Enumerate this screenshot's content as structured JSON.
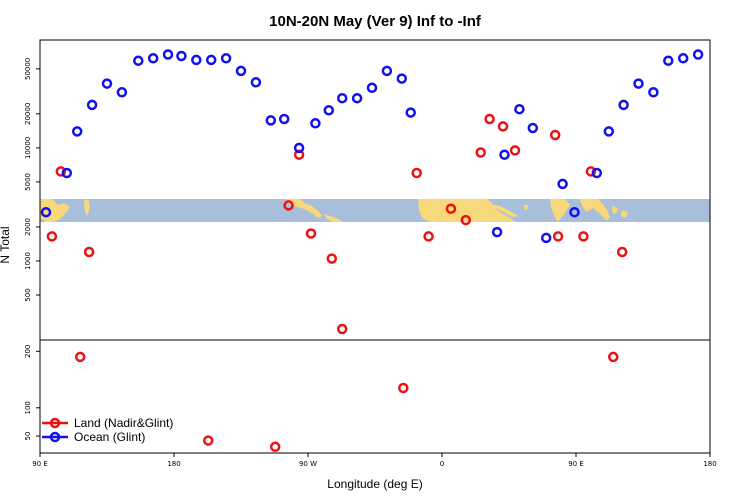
{
  "chart_data": {
    "type": "scatter",
    "title": "10N-20N May (Ver 9)   Inf to -Inf",
    "xlabel": "Longitude (deg E)",
    "ylabel": "N Total",
    "x_ticks": [
      {
        "value": 90,
        "label": "90 E"
      },
      {
        "value": 180,
        "label": "180"
      },
      {
        "value": 270,
        "label": "90 W"
      },
      {
        "value": 360,
        "label": "0"
      },
      {
        "value": 450,
        "label": "90 E"
      },
      {
        "value": 540,
        "label": "180"
      }
    ],
    "xlim": [
      90,
      540
    ],
    "upper_panel": {
      "scale": "log",
      "ylim": [
        200,
        90000
      ],
      "y_ticks": [
        500,
        1000,
        2000,
        5000,
        10000,
        20000,
        50000
      ],
      "y_tick_labels": [
        "500",
        "1000",
        "2000",
        "5000",
        "10000",
        "20000",
        "50000"
      ]
    },
    "lower_panel": {
      "scale": "linear",
      "ylim": [
        20,
        220
      ],
      "y_ticks": [
        50,
        100,
        200
      ],
      "y_tick_labels": [
        "50",
        "100",
        "200"
      ]
    },
    "map_strip": {
      "description_colors": {
        "ocean": "#a8bfdc",
        "land": "#f7d87a"
      }
    },
    "series": [
      {
        "name": "Land (Nadir&Glint)",
        "color": "#ee1111",
        "points": [
          {
            "x": 98,
            "y": 1650
          },
          {
            "x": 104,
            "y": 6200
          },
          {
            "x": 117,
            "y": 190
          },
          {
            "x": 123,
            "y": 1200
          },
          {
            "x": 203,
            "y": 42
          },
          {
            "x": 248,
            "y": 31
          },
          {
            "x": 257,
            "y": 3100
          },
          {
            "x": 264,
            "y": 8700
          },
          {
            "x": 272,
            "y": 1750
          },
          {
            "x": 286,
            "y": 1050
          },
          {
            "x": 293,
            "y": 250
          },
          {
            "x": 334,
            "y": 135
          },
          {
            "x": 343,
            "y": 6000
          },
          {
            "x": 351,
            "y": 1650
          },
          {
            "x": 366,
            "y": 2900
          },
          {
            "x": 376,
            "y": 2300
          },
          {
            "x": 386,
            "y": 9100
          },
          {
            "x": 392,
            "y": 18000
          },
          {
            "x": 401,
            "y": 15500
          },
          {
            "x": 409,
            "y": 9500
          },
          {
            "x": 436,
            "y": 13000
          },
          {
            "x": 438,
            "y": 1650
          },
          {
            "x": 455,
            "y": 1650
          },
          {
            "x": 460,
            "y": 6200
          },
          {
            "x": 475,
            "y": 190
          },
          {
            "x": 481,
            "y": 1200
          }
        ]
      },
      {
        "name": "Ocean (Glint)",
        "color": "#1111ee",
        "points": [
          {
            "x": 94,
            "y": 2700
          },
          {
            "x": 108,
            "y": 6000
          },
          {
            "x": 115,
            "y": 14000
          },
          {
            "x": 125,
            "y": 24000
          },
          {
            "x": 135,
            "y": 37000
          },
          {
            "x": 145,
            "y": 31000
          },
          {
            "x": 156,
            "y": 59000
          },
          {
            "x": 166,
            "y": 62000
          },
          {
            "x": 176,
            "y": 67000
          },
          {
            "x": 185,
            "y": 65000
          },
          {
            "x": 195,
            "y": 60000
          },
          {
            "x": 205,
            "y": 60000
          },
          {
            "x": 215,
            "y": 62000
          },
          {
            "x": 225,
            "y": 48000
          },
          {
            "x": 235,
            "y": 38000
          },
          {
            "x": 245,
            "y": 17500
          },
          {
            "x": 254,
            "y": 18000
          },
          {
            "x": 264,
            "y": 10000
          },
          {
            "x": 275,
            "y": 16500
          },
          {
            "x": 284,
            "y": 21500
          },
          {
            "x": 293,
            "y": 27500
          },
          {
            "x": 303,
            "y": 27500
          },
          {
            "x": 313,
            "y": 34000
          },
          {
            "x": 323,
            "y": 48000
          },
          {
            "x": 333,
            "y": 41000
          },
          {
            "x": 339,
            "y": 20500
          },
          {
            "x": 397,
            "y": 1800
          },
          {
            "x": 402,
            "y": 8700
          },
          {
            "x": 412,
            "y": 22000
          },
          {
            "x": 421,
            "y": 15000
          },
          {
            "x": 430,
            "y": 1600
          },
          {
            "x": 441,
            "y": 4800
          },
          {
            "x": 449,
            "y": 2700
          },
          {
            "x": 464,
            "y": 6000
          },
          {
            "x": 472,
            "y": 14000
          },
          {
            "x": 482,
            "y": 24000
          },
          {
            "x": 492,
            "y": 37000
          },
          {
            "x": 502,
            "y": 31000
          },
          {
            "x": 512,
            "y": 59000
          },
          {
            "x": 522,
            "y": 62000
          },
          {
            "x": 532,
            "y": 67000
          }
        ]
      }
    ],
    "legend": {
      "position": "bottom-left",
      "entries": [
        "Land (Nadir&Glint)",
        "Ocean (Glint)"
      ]
    }
  }
}
